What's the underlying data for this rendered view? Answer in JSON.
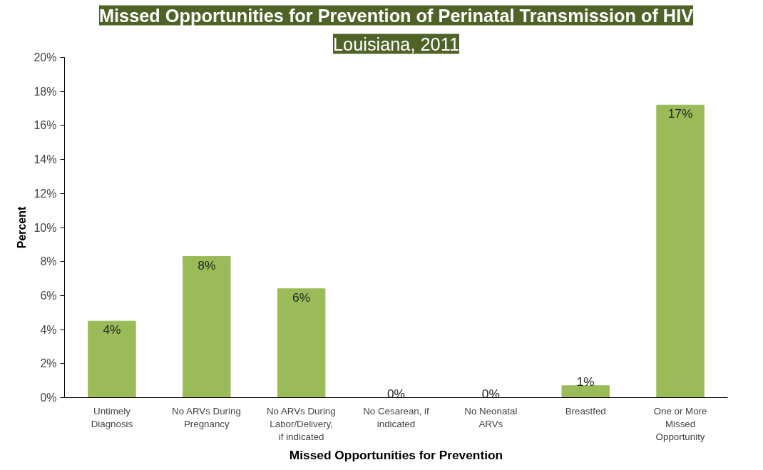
{
  "chart_data": {
    "type": "bar",
    "title": "Missed Opportunities for Prevention of Perinatal Transmission of HIV",
    "subtitle": "Louisiana, 2011",
    "xlabel": "Missed Opportunities for Prevention",
    "ylabel": "Percent",
    "categories": [
      "Untimely\nDiagnosis",
      "No ARVs During\nPregnancy",
      "No ARVs During\nLabor/Delivery,\nif indicated",
      "No Cesarean, if\nindicated",
      "No Neonatal\nARVs",
      "Breastfed",
      "One or More\nMissed\nOpportunity"
    ],
    "values": [
      4.5,
      8.3,
      6.4,
      0,
      0,
      0.7,
      17.2
    ],
    "value_labels": [
      "4%",
      "8%",
      "6%",
      "0%",
      "0%",
      "1%",
      "17%"
    ],
    "color": "#9bbb59",
    "ylim": [
      0,
      20
    ],
    "yticks": [
      {
        "value": 0,
        "label": "0%"
      },
      {
        "value": 2,
        "label": "2%"
      },
      {
        "value": 4,
        "label": "4%"
      },
      {
        "value": 6,
        "label": "6%"
      },
      {
        "value": 8,
        "label": "8%"
      },
      {
        "value": 10,
        "label": "10%"
      },
      {
        "value": 12,
        "label": "12%"
      },
      {
        "value": 14,
        "label": "14%"
      },
      {
        "value": 16,
        "label": "16%"
      },
      {
        "value": 18,
        "label": "18%"
      },
      {
        "value": 20,
        "label": "20%"
      }
    ],
    "grid": false
  }
}
